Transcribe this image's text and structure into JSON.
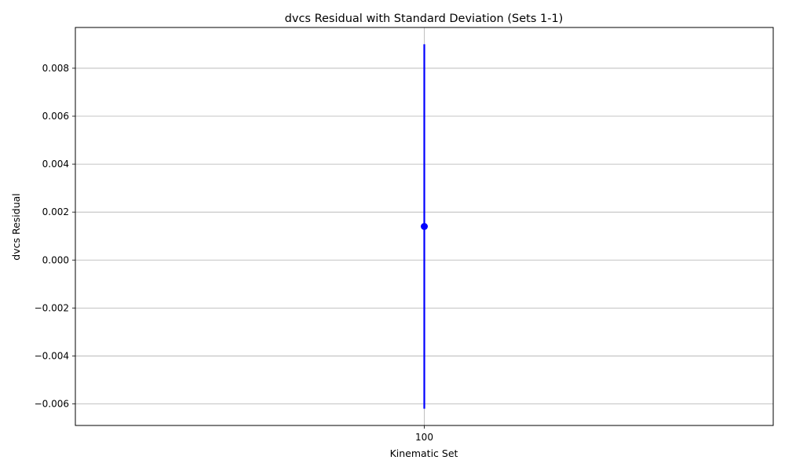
{
  "chart_data": {
    "type": "scatter",
    "title": "dvcs Residual with Standard Deviation (Sets 1-1)",
    "xlabel": "Kinematic Set",
    "ylabel": "dvcs Residual",
    "x_ticks": [
      "100"
    ],
    "y_ticks": [
      "0.008",
      "0.006",
      "0.004",
      "0.002",
      "0.000",
      "−0.002",
      "−0.004",
      "−0.006"
    ],
    "y_tick_values": [
      0.008,
      0.006,
      0.004,
      0.002,
      0.0,
      -0.002,
      -0.004,
      -0.006
    ],
    "ylim": [
      -0.0069,
      0.0097
    ],
    "grid": true,
    "series": [
      {
        "x": [
          "100"
        ],
        "y": [
          0.0014
        ],
        "yerr": [
          0.0076
        ],
        "color": "#0000ff",
        "marker": "circle",
        "errorbar": true
      }
    ]
  }
}
